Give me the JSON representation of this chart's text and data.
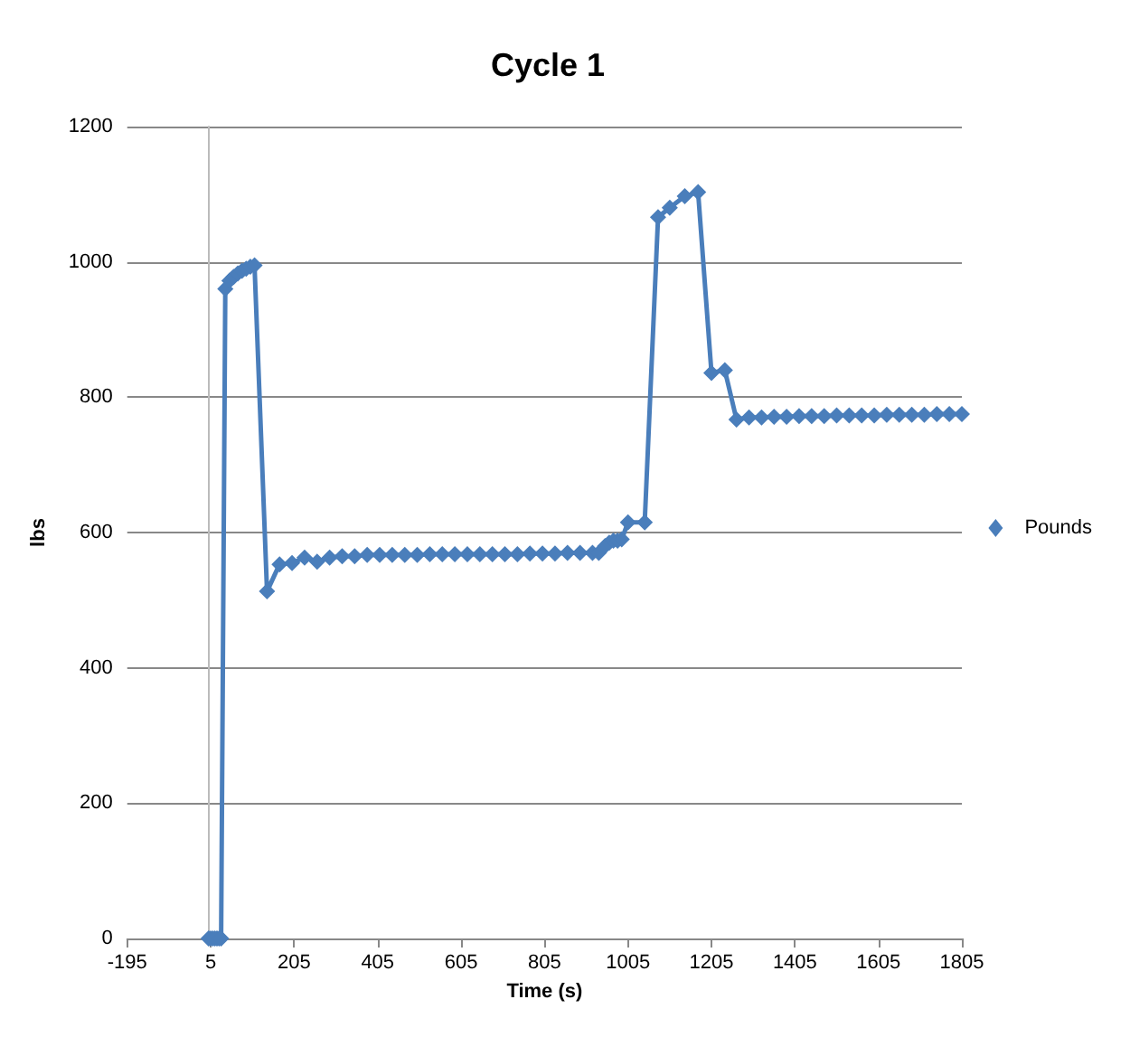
{
  "chart_data": {
    "type": "line",
    "title": "Cycle 1",
    "xlabel": "Time (s)",
    "ylabel": "lbs",
    "xlim": [
      -195,
      1805
    ],
    "xticks": [
      -195,
      5,
      205,
      405,
      605,
      805,
      1005,
      1205,
      1405,
      1605,
      1805
    ],
    "ylim": [
      0,
      1200
    ],
    "yticks": [
      0,
      200,
      400,
      600,
      800,
      1000,
      1200
    ],
    "grid": "y",
    "legend": "right",
    "marker": "diamond",
    "line_style": "solid",
    "series": [
      {
        "name": "Pounds",
        "color": "#4a7ebb",
        "x": [
          0,
          5,
          10,
          15,
          20,
          25,
          30,
          40,
          50,
          60,
          70,
          80,
          90,
          100,
          110,
          140,
          170,
          200,
          230,
          260,
          290,
          320,
          350,
          380,
          410,
          440,
          470,
          500,
          530,
          560,
          590,
          620,
          650,
          680,
          710,
          740,
          770,
          800,
          830,
          860,
          890,
          920,
          935,
          950,
          960,
          970,
          980,
          990,
          1005,
          1045,
          1077,
          1105,
          1141,
          1173,
          1205,
          1237,
          1265,
          1295,
          1325,
          1355,
          1385,
          1415,
          1445,
          1475,
          1505,
          1535,
          1565,
          1595,
          1625,
          1655,
          1685,
          1715,
          1745,
          1775,
          1805
        ],
        "values": [
          0,
          0,
          0,
          0,
          0,
          0,
          0,
          960,
          972,
          978,
          983,
          987,
          990,
          993,
          995,
          513,
          553,
          555,
          563,
          557,
          563,
          565,
          565,
          567,
          567,
          567,
          567,
          567,
          568,
          568,
          568,
          568,
          568,
          568,
          568,
          568,
          569,
          569,
          569,
          570,
          570,
          570,
          570,
          580,
          585,
          588,
          588,
          590,
          615,
          615,
          1066,
          1080,
          1097,
          1103,
          836,
          840,
          767,
          770,
          770,
          771,
          771,
          772,
          772,
          772,
          773,
          773,
          773,
          773,
          774,
          774,
          774,
          774,
          775,
          775,
          775
        ]
      }
    ]
  }
}
